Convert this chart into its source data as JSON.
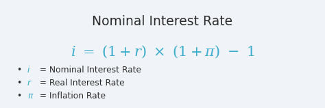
{
  "background_color": "#f0f3f7",
  "title": "Nominal Interest Rate",
  "title_color": "#2d2d2d",
  "title_fontsize": 13.5,
  "formula_color": "#3aaccc",
  "formula_fontsize": 15,
  "bullet_symbol_color": "#3aaccc",
  "bullet_text_color": "#2d2d2d",
  "bullet_fontsize": 8.8,
  "bullet_items": [
    {
      "symbol": "i",
      "text": " = Nominal Interest Rate"
    },
    {
      "symbol": "r",
      "text": " = Real Interest Rate"
    },
    {
      "symbol": "π",
      "text": " = Inflation Rate"
    }
  ],
  "figsize": [
    4.74,
    1.58
  ],
  "dpi": 100
}
